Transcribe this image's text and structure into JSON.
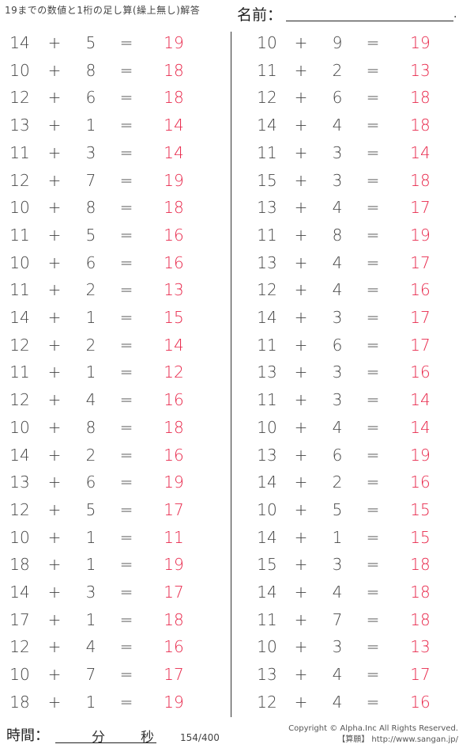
{
  "header": {
    "title": "19までの数値と1桁の足し算(繰上無し)解答",
    "name_label": "名前：",
    "name_dot": "."
  },
  "symbols": {
    "plus": "+",
    "equals": "="
  },
  "left": [
    [
      14,
      5,
      19
    ],
    [
      10,
      8,
      18
    ],
    [
      12,
      6,
      18
    ],
    [
      13,
      1,
      14
    ],
    [
      11,
      3,
      14
    ],
    [
      12,
      7,
      19
    ],
    [
      10,
      8,
      18
    ],
    [
      11,
      5,
      16
    ],
    [
      10,
      6,
      16
    ],
    [
      11,
      2,
      13
    ],
    [
      14,
      1,
      15
    ],
    [
      12,
      2,
      14
    ],
    [
      11,
      1,
      12
    ],
    [
      12,
      4,
      16
    ],
    [
      10,
      8,
      18
    ],
    [
      14,
      2,
      16
    ],
    [
      13,
      6,
      19
    ],
    [
      12,
      5,
      17
    ],
    [
      10,
      1,
      11
    ],
    [
      18,
      1,
      19
    ],
    [
      14,
      3,
      17
    ],
    [
      17,
      1,
      18
    ],
    [
      12,
      4,
      16
    ],
    [
      10,
      7,
      17
    ],
    [
      18,
      1,
      19
    ]
  ],
  "right": [
    [
      10,
      9,
      19
    ],
    [
      11,
      2,
      13
    ],
    [
      12,
      6,
      18
    ],
    [
      14,
      4,
      18
    ],
    [
      11,
      3,
      14
    ],
    [
      15,
      3,
      18
    ],
    [
      13,
      4,
      17
    ],
    [
      11,
      8,
      19
    ],
    [
      13,
      4,
      17
    ],
    [
      12,
      4,
      16
    ],
    [
      14,
      3,
      17
    ],
    [
      11,
      6,
      17
    ],
    [
      13,
      3,
      16
    ],
    [
      11,
      3,
      14
    ],
    [
      10,
      4,
      14
    ],
    [
      13,
      6,
      19
    ],
    [
      14,
      2,
      16
    ],
    [
      10,
      5,
      15
    ],
    [
      14,
      1,
      15
    ],
    [
      15,
      3,
      18
    ],
    [
      14,
      4,
      18
    ],
    [
      11,
      7,
      18
    ],
    [
      10,
      3,
      13
    ],
    [
      13,
      4,
      17
    ],
    [
      12,
      4,
      16
    ]
  ],
  "colors": {
    "answer": "#e8274a"
  },
  "footer": {
    "time_label": "時間：",
    "minutes": "分",
    "seconds": "秒",
    "page": "154/400",
    "copyright": "Copyright © Alpha.Inc All Rights Reserved.",
    "site": "【算願】 http://www.sangan.jp/"
  }
}
